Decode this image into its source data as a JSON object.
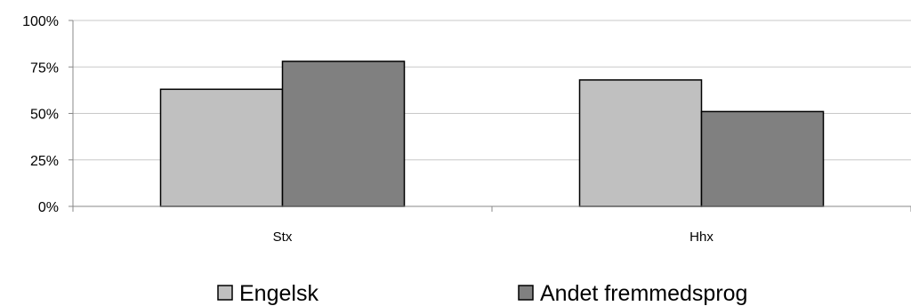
{
  "chart_data": {
    "type": "bar",
    "categories": [
      "Stx",
      "Hhx"
    ],
    "series": [
      {
        "name": "Engelsk",
        "values": [
          63,
          68
        ],
        "color": "#c0c0c0"
      },
      {
        "name": "Andet fremmedsprog",
        "values": [
          78,
          51
        ],
        "color": "#808080"
      }
    ],
    "ylim": [
      0,
      100
    ],
    "yticks": [
      0,
      25,
      50,
      75,
      100
    ],
    "ytick_labels": [
      "0%",
      "25%",
      "50%",
      "75%",
      "100%"
    ],
    "grid": true,
    "legend_position": "bottom"
  }
}
